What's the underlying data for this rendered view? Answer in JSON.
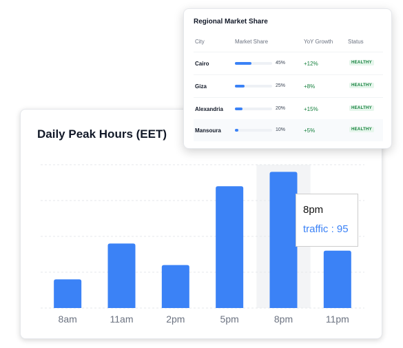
{
  "chart": {
    "title": "Daily Peak Hours (EET)",
    "tooltip": {
      "label": "8pm",
      "series": "traffic",
      "value": "95",
      "separator": " : "
    }
  },
  "chart_data": {
    "type": "bar",
    "title": "Daily Peak Hours (EET)",
    "categories": [
      "8am",
      "11am",
      "2pm",
      "5pm",
      "8pm",
      "11pm"
    ],
    "series": [
      {
        "name": "traffic",
        "values": [
          20,
          45,
          30,
          85,
          95,
          40
        ]
      }
    ],
    "ylim": [
      0,
      100
    ],
    "grid": true,
    "highlighted_category": "8pm",
    "colors": {
      "bar": "#3b82f6",
      "grid": "#e5e7eb",
      "highlight_bg": "#f3f4f6"
    }
  },
  "table": {
    "title": "Regional Market Share",
    "headers": {
      "city": "City",
      "share": "Market Share",
      "growth": "YoY Growth",
      "status": "Status"
    },
    "rows": [
      {
        "city": "Cairo",
        "share": 45,
        "share_label": "45%",
        "growth": "+12%",
        "status": "HEALTHY"
      },
      {
        "city": "Giza",
        "share": 25,
        "share_label": "25%",
        "growth": "+8%",
        "status": "HEALTHY"
      },
      {
        "city": "Alexandria",
        "share": 20,
        "share_label": "20%",
        "growth": "+15%",
        "status": "HEALTHY"
      },
      {
        "city": "Mansoura",
        "share": 10,
        "share_label": "10%",
        "growth": "+5%",
        "status": "HEALTHY"
      }
    ]
  }
}
